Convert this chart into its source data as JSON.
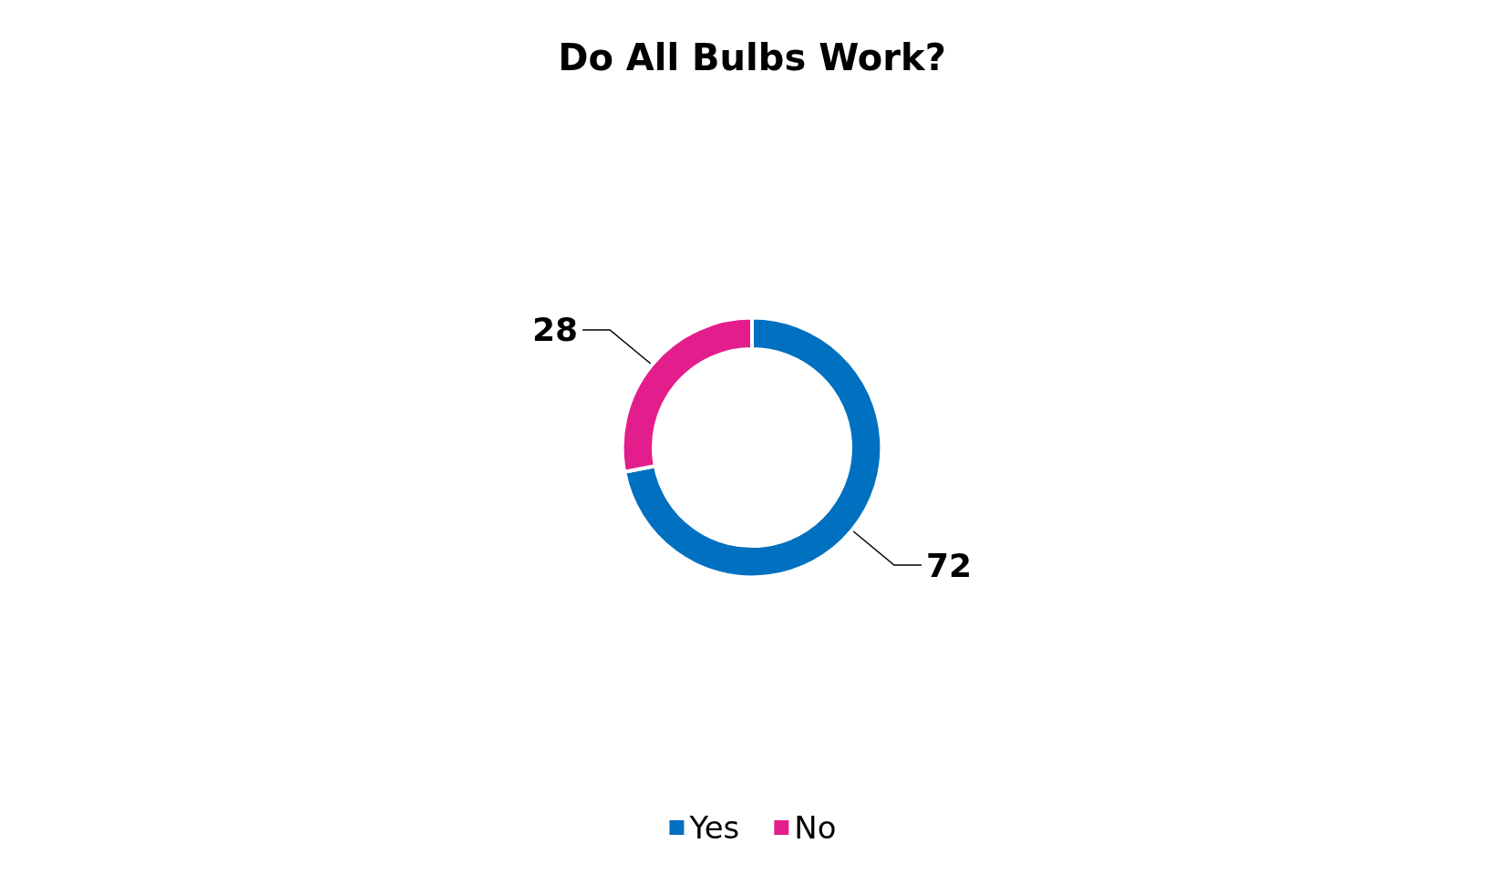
{
  "chart_data": {
    "type": "donut",
    "title": "Do All Bulbs Work?",
    "categories": [
      "Yes",
      "No"
    ],
    "values": [
      72,
      28
    ],
    "colors": [
      "#0070c0",
      "#e31e8c"
    ],
    "data_labels": true,
    "legend": "bottom"
  }
}
